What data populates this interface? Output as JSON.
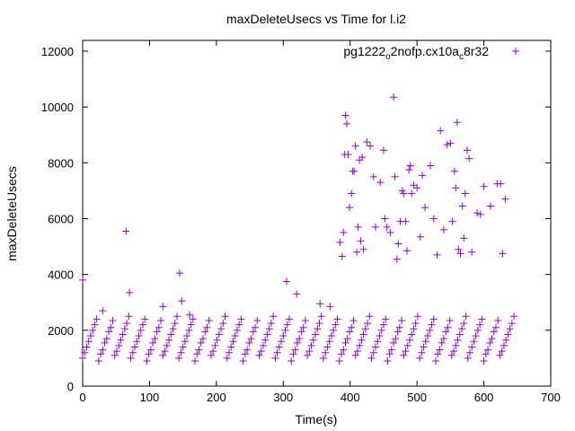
{
  "chart_data": {
    "type": "scatter",
    "title": "maxDeleteUsecs vs Time for l.i2",
    "xlabel": "Time(s)",
    "ylabel": "maxDeleteUsecs",
    "xlim": [
      0,
      700
    ],
    "ylim": [
      0,
      12000
    ],
    "xticks": [
      0,
      100,
      200,
      300,
      400,
      500,
      600,
      700
    ],
    "yticks": [
      0,
      2000,
      4000,
      6000,
      8000,
      10000,
      12000
    ],
    "grid": false,
    "legend_placement": "top-right",
    "series": [
      {
        "name": "pg1222_o2nofp.cx10a_c8r32",
        "name_parts": [
          "pg1222",
          "o",
          "2nofp.cx10a",
          "c",
          "8r32"
        ],
        "color": "#9400d3",
        "marker": "plus",
        "baseline": {
          "x_start": 0,
          "x_step": 3,
          "y": [
            1000,
            1200,
            1400,
            1600,
            1800,
            2000,
            2200,
            2400,
            900,
            1150,
            1300,
            1550,
            1700,
            1950,
            2100,
            2350,
            1100,
            1250,
            1450,
            1650,
            1850,
            2050,
            2250,
            2500,
            1000,
            1200,
            1400,
            1600,
            1800,
            2000,
            2200,
            2400,
            900,
            1150,
            1300,
            1550,
            1700,
            1950,
            2100,
            2350,
            1100,
            1250,
            1450,
            1650,
            1850,
            2050,
            2250,
            2500,
            1000,
            1200,
            1400,
            1600,
            1800,
            2000,
            2200,
            2400,
            900,
            1150,
            1300,
            1550,
            1700,
            1950,
            2100,
            2350,
            1100,
            1250,
            1450,
            1650,
            1850,
            2050,
            2250,
            2500,
            1000,
            1200,
            1400,
            1600,
            1800,
            2000,
            2200,
            2400,
            900,
            1150,
            1300,
            1550,
            1700,
            1950,
            2100,
            2350,
            1100,
            1250,
            1450,
            1650,
            1850,
            2050,
            2250,
            2500,
            1000,
            1200,
            1400,
            1600,
            1800,
            2000,
            2200,
            2400,
            900,
            1150,
            1300,
            1550,
            1700,
            1950,
            2100,
            2350,
            1100,
            1250,
            1450,
            1650,
            1850,
            2050,
            2250,
            2500,
            1000,
            1200,
            1400,
            1600,
            1800,
            2000,
            2200,
            2400,
            900,
            1150,
            1300,
            1550,
            1700,
            1950,
            2100,
            2350,
            1100,
            1250,
            1450,
            1650,
            1850,
            2050,
            2250,
            2500,
            1000,
            1200,
            1400,
            1600,
            1800,
            2000,
            2200,
            2400,
            900,
            1150,
            1300,
            1550,
            1700,
            1950,
            2100,
            2350,
            1100,
            1250,
            1450,
            1650,
            1850,
            2050,
            2250,
            2500,
            1000,
            1200,
            1400,
            1600,
            1800,
            2000,
            2200,
            2400,
            900,
            1150,
            1300,
            1550,
            1700,
            1950,
            2100,
            2350,
            1100,
            1250,
            1450,
            1650,
            1850,
            2050,
            2250,
            2500,
            1000,
            1200,
            1400,
            1600,
            1800,
            2000,
            2200,
            2400,
            900,
            1150,
            1300,
            1550,
            1700,
            1950,
            2100,
            2350,
            1100,
            1250,
            1450,
            1650,
            1850,
            2050,
            2250,
            2500
          ]
        },
        "points": [
          [
            0,
            3800
          ],
          [
            30,
            2700
          ],
          [
            65,
            5550
          ],
          [
            70,
            3350
          ],
          [
            120,
            2850
          ],
          [
            145,
            4050
          ],
          [
            148,
            3050
          ],
          [
            160,
            2550
          ],
          [
            305,
            3750
          ],
          [
            320,
            3300
          ],
          [
            355,
            2950
          ],
          [
            370,
            2850
          ],
          [
            385,
            5150
          ],
          [
            388,
            4650
          ],
          [
            390,
            5500
          ],
          [
            392,
            8300
          ],
          [
            393,
            9700
          ],
          [
            395,
            9400
          ],
          [
            397,
            8300
          ],
          [
            399,
            6400
          ],
          [
            402,
            6900
          ],
          [
            404,
            7700
          ],
          [
            406,
            7700
          ],
          [
            408,
            8600
          ],
          [
            410,
            4800
          ],
          [
            412,
            5700
          ],
          [
            414,
            8100
          ],
          [
            416,
            5200
          ],
          [
            418,
            8200
          ],
          [
            420,
            4900
          ],
          [
            425,
            8750
          ],
          [
            430,
            8600
          ],
          [
            435,
            7500
          ],
          [
            438,
            5700
          ],
          [
            445,
            7300
          ],
          [
            450,
            8450
          ],
          [
            452,
            6000
          ],
          [
            455,
            5700
          ],
          [
            460,
            5500
          ],
          [
            465,
            10350
          ],
          [
            467,
            7500
          ],
          [
            470,
            4550
          ],
          [
            472,
            5100
          ],
          [
            475,
            5900
          ],
          [
            478,
            7000
          ],
          [
            480,
            6900
          ],
          [
            483,
            5900
          ],
          [
            485,
            4850
          ],
          [
            488,
            7750
          ],
          [
            490,
            7900
          ],
          [
            492,
            6900
          ],
          [
            495,
            7200
          ],
          [
            500,
            7100
          ],
          [
            505,
            5350
          ],
          [
            508,
            7550
          ],
          [
            512,
            6400
          ],
          [
            520,
            7900
          ],
          [
            525,
            6000
          ],
          [
            530,
            4700
          ],
          [
            535,
            9150
          ],
          [
            540,
            5600
          ],
          [
            545,
            8650
          ],
          [
            550,
            8700
          ],
          [
            553,
            5900
          ],
          [
            556,
            7700
          ],
          [
            558,
            7100
          ],
          [
            560,
            9450
          ],
          [
            562,
            4900
          ],
          [
            565,
            4750
          ],
          [
            568,
            6450
          ],
          [
            570,
            5300
          ],
          [
            572,
            6900
          ],
          [
            575,
            8450
          ],
          [
            578,
            8150
          ],
          [
            582,
            4800
          ],
          [
            590,
            6200
          ],
          [
            595,
            6150
          ],
          [
            600,
            7150
          ],
          [
            610,
            6450
          ],
          [
            620,
            7250
          ],
          [
            625,
            7250
          ],
          [
            628,
            4750
          ],
          [
            632,
            6700
          ]
        ]
      }
    ]
  }
}
